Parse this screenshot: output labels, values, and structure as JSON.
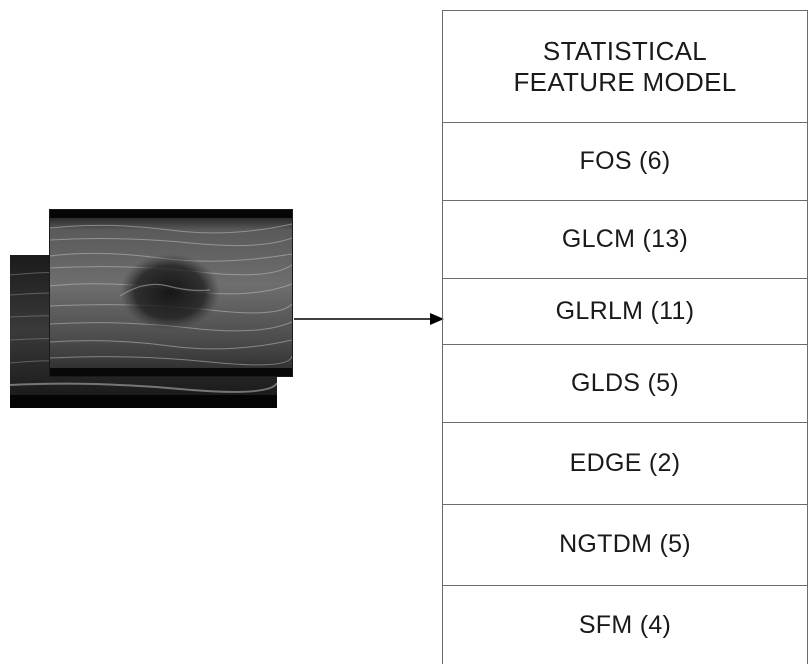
{
  "diagram": {
    "header_lines": [
      "STATISTICAL",
      "FEATURE MODEL"
    ],
    "features": [
      "FOS (6)",
      "GLCM (13)",
      "GLRLM (11)",
      "GLDS (5)",
      "EDGE (2)",
      "NGTDM (5)",
      "SFM (4)"
    ],
    "colors": {
      "border": "#6b6b6b",
      "text": "#1a1a1a",
      "arrow": "#000000"
    }
  }
}
